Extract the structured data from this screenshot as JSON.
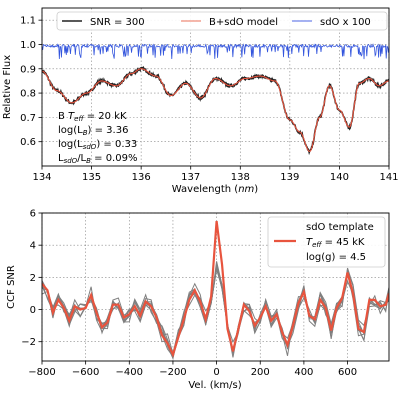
{
  "chart_data": [
    {
      "type": "line",
      "xlabel": "Wavelength (nm)",
      "ylabel": "Relative Flux",
      "xlim": [
        134,
        141
      ],
      "ylim": [
        0.5,
        1.15
      ],
      "xticks": [
        134,
        135,
        136,
        137,
        138,
        139,
        140,
        141
      ],
      "yticks": [
        0.6,
        0.7,
        0.8,
        0.9,
        1.0,
        1.1
      ],
      "grid": true,
      "legend": {
        "placement": "top",
        "entries": [
          "SNR = 300",
          "B+sdO model",
          "sdO x 100"
        ]
      },
      "annotation": [
        "B Teff = 20 kK",
        "log(LB) = 3.36",
        "log(LsdO) = 0.33",
        "LsdO/LB = 0.09%"
      ],
      "series": [
        {
          "name": "SNR = 300",
          "color": "#222222",
          "noisy": true
        },
        {
          "name": "B+sdO model",
          "color": "#e8543e"
        },
        {
          "name": "sdO x 100",
          "color": "#3355dd"
        }
      ],
      "continuum_points": {
        "x": [
          134.0,
          134.3,
          134.6,
          134.9,
          135.2,
          135.5,
          135.8,
          136.0,
          136.3,
          136.6,
          136.9,
          137.2,
          137.5,
          137.8,
          138.1,
          138.4,
          138.7,
          139.0,
          139.2,
          139.4,
          139.6,
          139.8,
          140.0,
          140.2,
          140.4,
          140.6,
          140.8,
          141.0
        ],
        "y": [
          0.89,
          0.81,
          0.76,
          0.8,
          0.85,
          0.83,
          0.88,
          0.9,
          0.87,
          0.79,
          0.84,
          0.78,
          0.86,
          0.83,
          0.86,
          0.87,
          0.85,
          0.69,
          0.64,
          0.56,
          0.7,
          0.83,
          0.73,
          0.66,
          0.84,
          0.86,
          0.83,
          0.85
        ]
      }
    },
    {
      "type": "line",
      "xlabel": "Vel. (km/s)",
      "ylabel": "CCF SNR",
      "xlim": [
        -800,
        790
      ],
      "ylim": [
        -3.2,
        6
      ],
      "xticks": [
        -800,
        -600,
        -400,
        -200,
        0,
        200,
        400,
        600
      ],
      "yticks": [
        -2,
        0,
        2,
        4,
        6
      ],
      "grid": true,
      "legend": {
        "placement": "top-right",
        "entries": [
          "sdO template",
          "Teff = 45 kK",
          "log(g) = 4.5"
        ]
      },
      "series": [
        {
          "name": "sdO template",
          "color": "#e8543e",
          "x": [
            -800,
            -775,
            -750,
            -725,
            -700,
            -675,
            -650,
            -625,
            -600,
            -575,
            -550,
            -525,
            -500,
            -475,
            -450,
            -425,
            -400,
            -375,
            -350,
            -325,
            -300,
            -275,
            -250,
            -225,
            -200,
            -175,
            -150,
            -125,
            -100,
            -75,
            -50,
            -25,
            0,
            25,
            50,
            75,
            100,
            125,
            150,
            175,
            200,
            225,
            250,
            275,
            300,
            325,
            350,
            375,
            400,
            425,
            450,
            475,
            500,
            525,
            550,
            575,
            600,
            625,
            650,
            675,
            700,
            725,
            750,
            775,
            790
          ],
          "y": [
            1.6,
            1.2,
            -0.2,
            0.6,
            0.1,
            -0.7,
            0.2,
            0.0,
            0.1,
            0.9,
            -0.2,
            -1.1,
            -0.8,
            0.3,
            0.3,
            -0.5,
            -0.3,
            0.2,
            -0.4,
            0.5,
            0.2,
            -0.5,
            -1.6,
            -2.1,
            -2.8,
            -1.7,
            -0.6,
            0.6,
            1.2,
            0.5,
            -0.6,
            0.8,
            5.5,
            2.8,
            -1.2,
            -2.6,
            -1.2,
            0.3,
            -0.1,
            -1.0,
            -0.5,
            0.2,
            -0.7,
            -0.3,
            -1.4,
            -2.2,
            -1.0,
            0.4,
            1.1,
            -0.4,
            -0.6,
            0.6,
            0.1,
            -1.3,
            0.1,
            0.7,
            2.3,
            1.0,
            -1.2,
            -1.4,
            0.6,
            0.6,
            0.2,
            0.3,
            1.0
          ]
        }
      ]
    }
  ]
}
